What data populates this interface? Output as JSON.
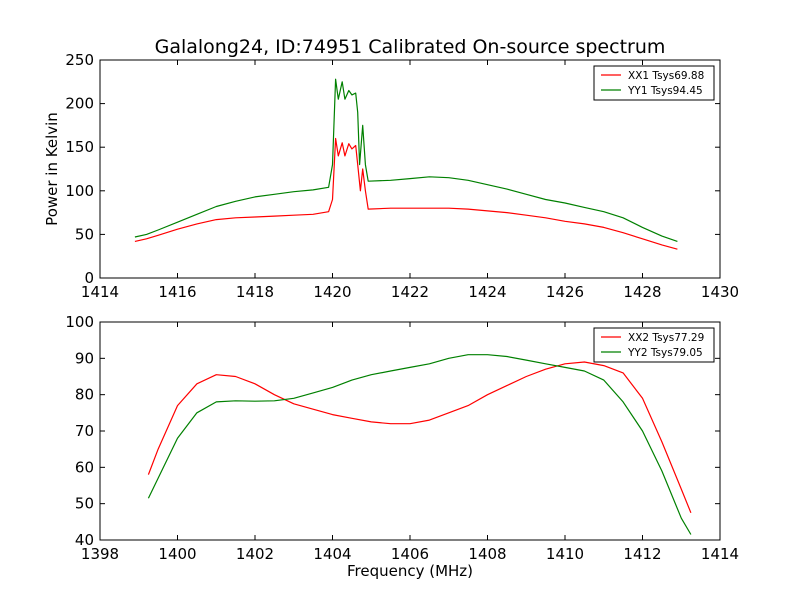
{
  "figure": {
    "title": "Galalong24, ID:74951 Calibrated On-source spectrum"
  },
  "chart_data": [
    {
      "type": "line",
      "title": "Galalong24, ID:74951 Calibrated On-source spectrum",
      "xlabel": "",
      "ylabel": "Power in Kelvin",
      "xlim": [
        1414,
        1430
      ],
      "ylim": [
        0,
        250
      ],
      "xticks": [
        1414,
        1416,
        1418,
        1420,
        1422,
        1424,
        1426,
        1428,
        1430
      ],
      "yticks": [
        0,
        50,
        100,
        150,
        200,
        250
      ],
      "grid": false,
      "legend_position": "top-right",
      "series": [
        {
          "name": "XX1 Tsys69.88",
          "color": "#ff0000",
          "points": [
            [
              1414.9,
              42
            ],
            [
              1415.2,
              45
            ],
            [
              1415.5,
              49
            ],
            [
              1416.0,
              56
            ],
            [
              1416.5,
              62
            ],
            [
              1417.0,
              67
            ],
            [
              1417.5,
              69
            ],
            [
              1418.0,
              70
            ],
            [
              1418.5,
              71
            ],
            [
              1419.0,
              72
            ],
            [
              1419.5,
              73
            ],
            [
              1419.9,
              76
            ],
            [
              1420.0,
              90
            ],
            [
              1420.08,
              160
            ],
            [
              1420.15,
              140
            ],
            [
              1420.25,
              155
            ],
            [
              1420.32,
              140
            ],
            [
              1420.42,
              154
            ],
            [
              1420.5,
              148
            ],
            [
              1420.6,
              152
            ],
            [
              1420.65,
              130
            ],
            [
              1420.72,
              100
            ],
            [
              1420.78,
              125
            ],
            [
              1420.85,
              100
            ],
            [
              1420.92,
              79
            ],
            [
              1421.5,
              80
            ],
            [
              1422.0,
              80
            ],
            [
              1422.5,
              80
            ],
            [
              1423.0,
              80
            ],
            [
              1423.5,
              79
            ],
            [
              1424.0,
              77
            ],
            [
              1424.5,
              75
            ],
            [
              1425.0,
              72
            ],
            [
              1425.5,
              69
            ],
            [
              1426.0,
              65
            ],
            [
              1426.5,
              62
            ],
            [
              1427.0,
              58
            ],
            [
              1427.5,
              52
            ],
            [
              1428.0,
              45
            ],
            [
              1428.5,
              38
            ],
            [
              1428.9,
              33
            ]
          ]
        },
        {
          "name": "YY1 Tsys94.45",
          "color": "#008000",
          "points": [
            [
              1414.9,
              47
            ],
            [
              1415.2,
              50
            ],
            [
              1415.5,
              55
            ],
            [
              1416.0,
              64
            ],
            [
              1416.5,
              73
            ],
            [
              1417.0,
              82
            ],
            [
              1417.5,
              88
            ],
            [
              1418.0,
              93
            ],
            [
              1418.5,
              96
            ],
            [
              1419.0,
              99
            ],
            [
              1419.5,
              101
            ],
            [
              1419.9,
              104
            ],
            [
              1420.0,
              130
            ],
            [
              1420.08,
              228
            ],
            [
              1420.15,
              205
            ],
            [
              1420.25,
              225
            ],
            [
              1420.32,
              205
            ],
            [
              1420.42,
              215
            ],
            [
              1420.5,
              210
            ],
            [
              1420.6,
              212
            ],
            [
              1420.65,
              190
            ],
            [
              1420.7,
              130
            ],
            [
              1420.78,
              175
            ],
            [
              1420.85,
              130
            ],
            [
              1420.92,
              111
            ],
            [
              1421.5,
              112
            ],
            [
              1422.0,
              114
            ],
            [
              1422.5,
              116
            ],
            [
              1423.0,
              115
            ],
            [
              1423.5,
              112
            ],
            [
              1424.0,
              107
            ],
            [
              1424.5,
              102
            ],
            [
              1425.0,
              96
            ],
            [
              1425.5,
              90
            ],
            [
              1426.0,
              86
            ],
            [
              1426.5,
              81
            ],
            [
              1427.0,
              76
            ],
            [
              1427.5,
              69
            ],
            [
              1428.0,
              58
            ],
            [
              1428.5,
              48
            ],
            [
              1428.9,
              42
            ]
          ]
        }
      ]
    },
    {
      "type": "line",
      "title": "",
      "xlabel": "Frequency (MHz)",
      "ylabel": "",
      "xlim": [
        1398,
        1414
      ],
      "ylim": [
        40,
        100
      ],
      "xticks": [
        1398,
        1400,
        1402,
        1404,
        1406,
        1408,
        1410,
        1412,
        1414
      ],
      "yticks": [
        40,
        50,
        60,
        70,
        80,
        90,
        100
      ],
      "grid": false,
      "legend_position": "top-right",
      "series": [
        {
          "name": "XX2 Tsys77.29",
          "color": "#ff0000",
          "points": [
            [
              1399.25,
              58
            ],
            [
              1399.5,
              65
            ],
            [
              1400.0,
              77
            ],
            [
              1400.5,
              83
            ],
            [
              1401.0,
              85.5
            ],
            [
              1401.5,
              85
            ],
            [
              1402.0,
              83
            ],
            [
              1402.5,
              80
            ],
            [
              1403.0,
              77.5
            ],
            [
              1403.5,
              76
            ],
            [
              1404.0,
              74.5
            ],
            [
              1404.5,
              73.5
            ],
            [
              1405.0,
              72.5
            ],
            [
              1405.5,
              72
            ],
            [
              1406.0,
              72
            ],
            [
              1406.5,
              73
            ],
            [
              1407.0,
              75
            ],
            [
              1407.5,
              77
            ],
            [
              1408.0,
              80
            ],
            [
              1408.5,
              82.5
            ],
            [
              1409.0,
              85
            ],
            [
              1409.5,
              87
            ],
            [
              1410.0,
              88.5
            ],
            [
              1410.5,
              89
            ],
            [
              1411.0,
              88
            ],
            [
              1411.5,
              86
            ],
            [
              1412.0,
              79
            ],
            [
              1412.5,
              67
            ],
            [
              1413.0,
              54
            ],
            [
              1413.25,
              47.5
            ]
          ]
        },
        {
          "name": "YY2 Tsys79.05",
          "color": "#008000",
          "points": [
            [
              1399.25,
              51.5
            ],
            [
              1399.5,
              57
            ],
            [
              1400.0,
              68
            ],
            [
              1400.5,
              75
            ],
            [
              1401.0,
              78
            ],
            [
              1401.5,
              78.3
            ],
            [
              1402.0,
              78.2
            ],
            [
              1402.5,
              78.3
            ],
            [
              1403.0,
              79
            ],
            [
              1403.5,
              80.5
            ],
            [
              1404.0,
              82
            ],
            [
              1404.5,
              84
            ],
            [
              1405.0,
              85.5
            ],
            [
              1405.5,
              86.5
            ],
            [
              1406.0,
              87.5
            ],
            [
              1406.5,
              88.5
            ],
            [
              1407.0,
              90
            ],
            [
              1407.5,
              91
            ],
            [
              1408.0,
              91
            ],
            [
              1408.5,
              90.5
            ],
            [
              1409.0,
              89.5
            ],
            [
              1409.5,
              88.5
            ],
            [
              1410.0,
              87.5
            ],
            [
              1410.5,
              86.5
            ],
            [
              1411.0,
              84
            ],
            [
              1411.5,
              78
            ],
            [
              1412.0,
              70
            ],
            [
              1412.5,
              59
            ],
            [
              1413.0,
              46
            ],
            [
              1413.25,
              41.5
            ]
          ]
        }
      ]
    }
  ]
}
